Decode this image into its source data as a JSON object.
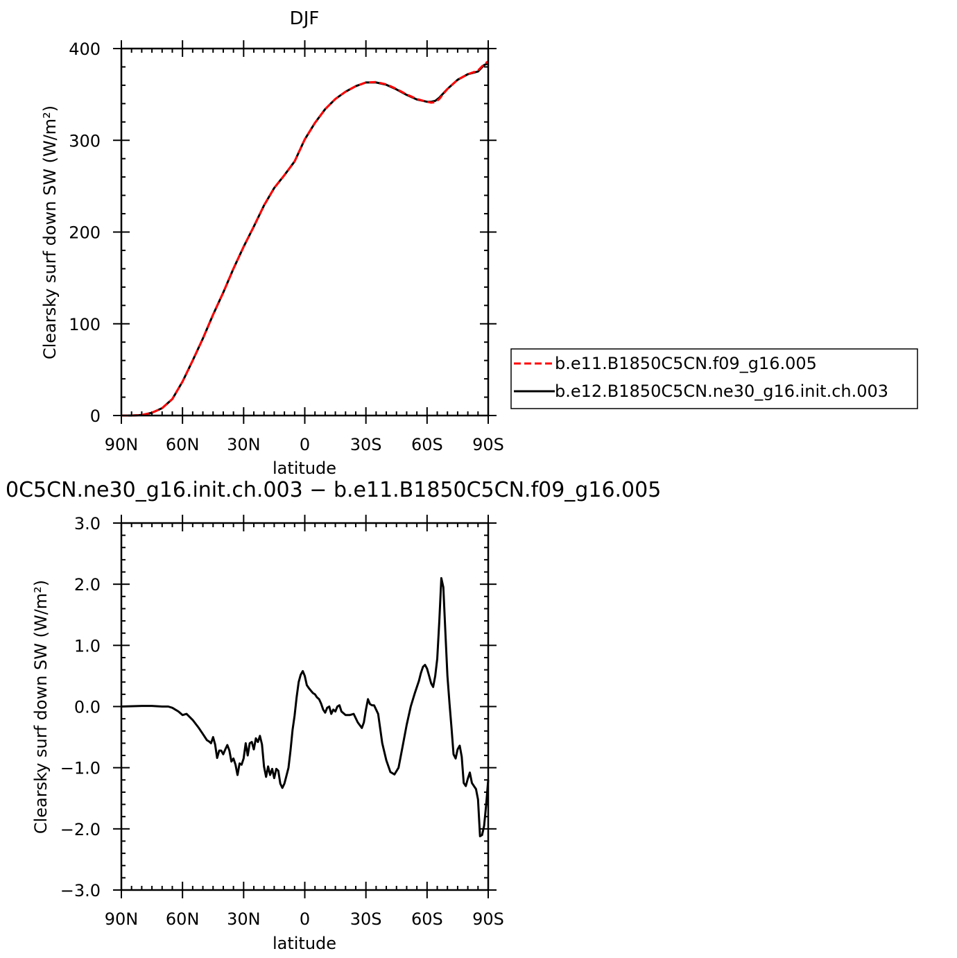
{
  "chart_data": [
    {
      "type": "line",
      "title": "DJF",
      "xlabel": "latitude",
      "ylabel": "Clearsky surf down SW (W/m²)",
      "xticks": [
        "90N",
        "60N",
        "30N",
        "0",
        "30S",
        "60S",
        "90S"
      ],
      "yticks": [
        "0",
        "100",
        "200",
        "300",
        "400"
      ],
      "xlim": [
        90,
        -90
      ],
      "ylim": [
        0,
        400
      ],
      "legend": {
        "placement": "right"
      },
      "series": [
        {
          "name": "b.e11.B1850C5CN.f09_g16.005",
          "color": "#ff0000",
          "dash": "dashed",
          "x": [
            90,
            85,
            80,
            75,
            70,
            65,
            60,
            55,
            50,
            45,
            40,
            35,
            30,
            25,
            20,
            15,
            10,
            5,
            0,
            -5,
            -10,
            -15,
            -20,
            -25,
            -30,
            -35,
            -40,
            -45,
            -50,
            -55,
            -60,
            -62,
            -64,
            -66,
            -70,
            -75,
            -80,
            -85,
            -88,
            -90
          ],
          "y": [
            0,
            0,
            0.5,
            3,
            8,
            18,
            37,
            60,
            84,
            110,
            134,
            160,
            184,
            206,
            229,
            248,
            262,
            277,
            301,
            319,
            334,
            345,
            353,
            359,
            363,
            363.5,
            361,
            356,
            350,
            345,
            342,
            341,
            341.5,
            345,
            356,
            366,
            372,
            376,
            383,
            386
          ]
        },
        {
          "name": "b.e12.B1850C5CN.ne30_g16.init.ch.003",
          "color": "#000000",
          "dash": "solid",
          "x": [
            90,
            85,
            80,
            75,
            70,
            65,
            60,
            55,
            50,
            45,
            40,
            35,
            30,
            25,
            20,
            15,
            10,
            5,
            0,
            -5,
            -10,
            -15,
            -20,
            -25,
            -30,
            -35,
            -40,
            -45,
            -50,
            -55,
            -60,
            -62,
            -64,
            -66,
            -70,
            -75,
            -80,
            -85,
            -88,
            -90
          ],
          "y": [
            0,
            0,
            0.5,
            3,
            8,
            18,
            37,
            60,
            84,
            110,
            134,
            160,
            184,
            206,
            229,
            248,
            262,
            277,
            301,
            319,
            334,
            345,
            353,
            359,
            363,
            363,
            360.5,
            355.5,
            349.5,
            344.5,
            342,
            342,
            343,
            346.5,
            356,
            366,
            372,
            375,
            382,
            384
          ]
        }
      ]
    },
    {
      "type": "line",
      "title": "0C5CN.ne30_g16.init.ch.003 − b.e11.B1850C5CN.f09_g16.005",
      "xlabel": "latitude",
      "ylabel": "Clearsky surf down SW (W/m²)",
      "xticks": [
        "90N",
        "60N",
        "30N",
        "0",
        "30S",
        "60S",
        "90S"
      ],
      "yticks": [
        "3.0",
        "2.0",
        "1.0",
        "0.0",
        "−1.0",
        "−2.0",
        "−3.0"
      ],
      "xlim": [
        90,
        -90
      ],
      "ylim": [
        -3,
        3
      ],
      "series": [
        {
          "color": "#000000",
          "x": [
            90,
            80,
            75,
            70,
            67,
            65,
            62,
            60,
            58,
            55,
            52,
            50,
            48,
            47,
            46,
            45,
            44,
            43,
            42,
            41,
            40,
            39,
            38,
            37,
            36,
            35,
            34,
            33,
            32,
            31,
            30,
            29,
            28,
            27,
            26,
            25,
            24,
            23,
            22,
            21,
            20,
            19,
            18,
            17,
            16,
            15,
            14,
            13,
            12,
            11,
            10,
            9,
            8,
            7,
            6,
            5,
            4,
            3,
            2,
            1,
            0,
            -1,
            -2,
            -3,
            -4,
            -5,
            -6,
            -7,
            -8,
            -9,
            -10,
            -11,
            -12,
            -13,
            -14,
            -15,
            -16,
            -17,
            -18,
            -20,
            -22,
            -24,
            -26,
            -28,
            -29,
            -30,
            -31,
            -32,
            -33,
            -34,
            -36,
            -38,
            -40,
            -42,
            -44,
            -46,
            -48,
            -50,
            -52,
            -54,
            -56,
            -57,
            -58,
            -59,
            -60,
            -61,
            -62,
            -63,
            -64,
            -65,
            -66,
            -67,
            -68,
            -69,
            -70,
            -71,
            -72,
            -73,
            -74,
            -75,
            -76,
            -77,
            -78,
            -79,
            -80,
            -81,
            -82,
            -83,
            -84,
            -85,
            -86,
            -87,
            -88,
            -89,
            -90
          ],
          "y": [
            0,
            0.01,
            0.01,
            0,
            0,
            -0.02,
            -0.08,
            -0.14,
            -0.12,
            -0.22,
            -0.35,
            -0.45,
            -0.55,
            -0.57,
            -0.6,
            -0.5,
            -0.62,
            -0.84,
            -0.72,
            -0.72,
            -0.78,
            -0.7,
            -0.63,
            -0.72,
            -0.9,
            -0.85,
            -0.95,
            -1.12,
            -0.93,
            -0.95,
            -0.85,
            -0.6,
            -0.8,
            -0.6,
            -0.58,
            -0.7,
            -0.52,
            -0.58,
            -0.48,
            -0.62,
            -0.98,
            -1.15,
            -0.98,
            -1.12,
            -1.02,
            -1.17,
            -1.02,
            -1.05,
            -1.26,
            -1.33,
            -1.26,
            -1.13,
            -1.0,
            -0.72,
            -0.38,
            -0.15,
            0.15,
            0.4,
            0.52,
            0.58,
            0.5,
            0.35,
            0.3,
            0.26,
            0.22,
            0.2,
            0.15,
            0.12,
            0.05,
            -0.05,
            -0.1,
            -0.02,
            0,
            -0.12,
            -0.05,
            -0.08,
            0.0,
            0.02,
            -0.08,
            -0.14,
            -0.14,
            -0.12,
            -0.26,
            -0.35,
            -0.26,
            -0.05,
            0.12,
            0.04,
            0.02,
            0.02,
            -0.12,
            -0.6,
            -0.88,
            -1.07,
            -1.11,
            -1.0,
            -0.65,
            -0.3,
            0.0,
            0.22,
            0.42,
            0.55,
            0.65,
            0.68,
            0.62,
            0.5,
            0.38,
            0.32,
            0.5,
            0.78,
            1.4,
            2.1,
            1.95,
            1.2,
            0.5,
            0.05,
            -0.35,
            -0.78,
            -0.85,
            -0.7,
            -0.64,
            -0.82,
            -1.25,
            -1.3,
            -1.18,
            -1.08,
            -1.25,
            -1.3,
            -1.35,
            -1.52,
            -2.12,
            -2.1,
            -1.95,
            -1.6,
            -1.2
          ]
        }
      ]
    }
  ]
}
